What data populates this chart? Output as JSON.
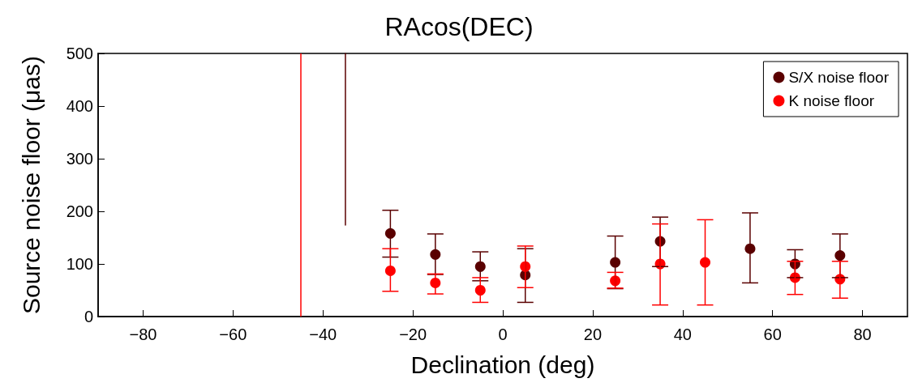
{
  "chart_data": {
    "type": "scatter",
    "title": "RAcos(DEC)",
    "xlabel": "Declination (deg)",
    "ylabel": "Source noise floor (μas)",
    "xlim": [
      -90,
      90
    ],
    "xticks": [
      {
        "value": -80,
        "label": "−80"
      },
      {
        "value": -60,
        "label": "−60"
      },
      {
        "value": -40,
        "label": "−40"
      },
      {
        "value": -20,
        "label": "−20"
      },
      0,
      20,
      40,
      60,
      80
    ],
    "ylim": [
      0,
      500
    ],
    "yticks": [
      0,
      100,
      200,
      300,
      400,
      500
    ],
    "grid": false,
    "legend": "top right",
    "marker": "circle",
    "series": [
      {
        "name": "S/X noise floor",
        "color": "#5a0000",
        "x": [
          -25,
          -15,
          -5,
          5,
          25,
          35,
          55,
          65,
          75
        ],
        "values": [
          158,
          118,
          95,
          79,
          103,
          143,
          129,
          100,
          116
        ],
        "errors": [
          [
            113,
            202
          ],
          [
            80,
            157
          ],
          [
            68,
            123
          ],
          [
            27,
            129
          ],
          [
            53,
            153
          ],
          [
            95,
            189
          ],
          [
            64,
            197
          ],
          [
            74,
            127
          ],
          [
            74,
            157
          ]
        ]
      },
      {
        "name": "K noise floor",
        "color": "#ff0000",
        "x": [
          -25,
          -15,
          -5,
          5,
          25,
          35,
          45,
          65,
          75
        ],
        "values": [
          87,
          64,
          50,
          95,
          68,
          100,
          103,
          74,
          71
        ],
        "errors": [
          [
            48,
            129
          ],
          [
            43,
            81
          ],
          [
            27,
            74
          ],
          [
            55,
            134
          ],
          [
            54,
            84
          ],
          [
            22,
            176
          ],
          [
            22,
            184
          ],
          [
            42,
            105
          ],
          [
            35,
            105
          ]
        ]
      },
      {
        "type": "line",
        "marker": "none",
        "color": "#5a0000",
        "x": [
          -35,
          -35
        ],
        "values": [
          174,
          500
        ]
      }
    ],
    "ref_lines": [
      {
        "axis": "x",
        "value": -45,
        "color": "#ff0000"
      }
    ]
  }
}
